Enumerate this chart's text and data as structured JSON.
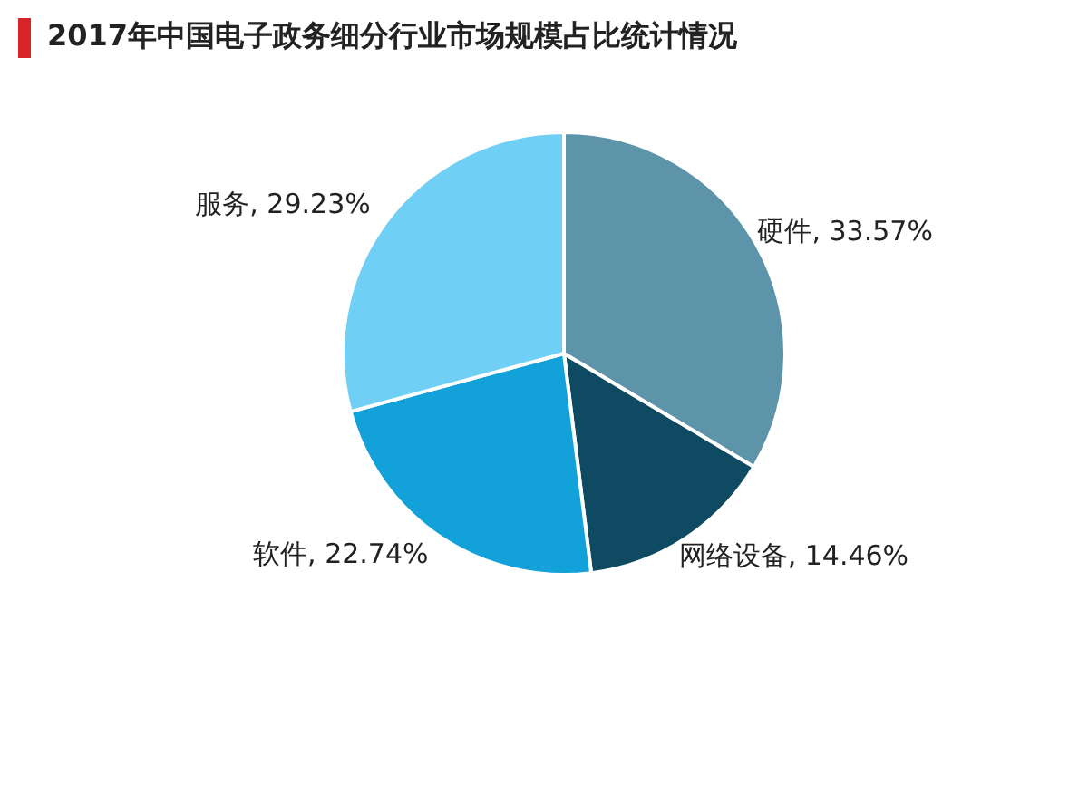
{
  "chart_data": {
    "type": "pie",
    "title": "2017年中国电子政务细分行业市场规模占比统计情况",
    "categories": [
      "硬件",
      "网络设备",
      "软件",
      "服务"
    ],
    "values": [
      33.57,
      14.46,
      22.74,
      29.23
    ],
    "value_labels": [
      "33.57%",
      "14.46%",
      "22.74%",
      "29.23%"
    ],
    "colors": [
      "#5e94a9",
      "#0e4a62",
      "#12a1d9",
      "#70cff5"
    ],
    "legend": false
  }
}
